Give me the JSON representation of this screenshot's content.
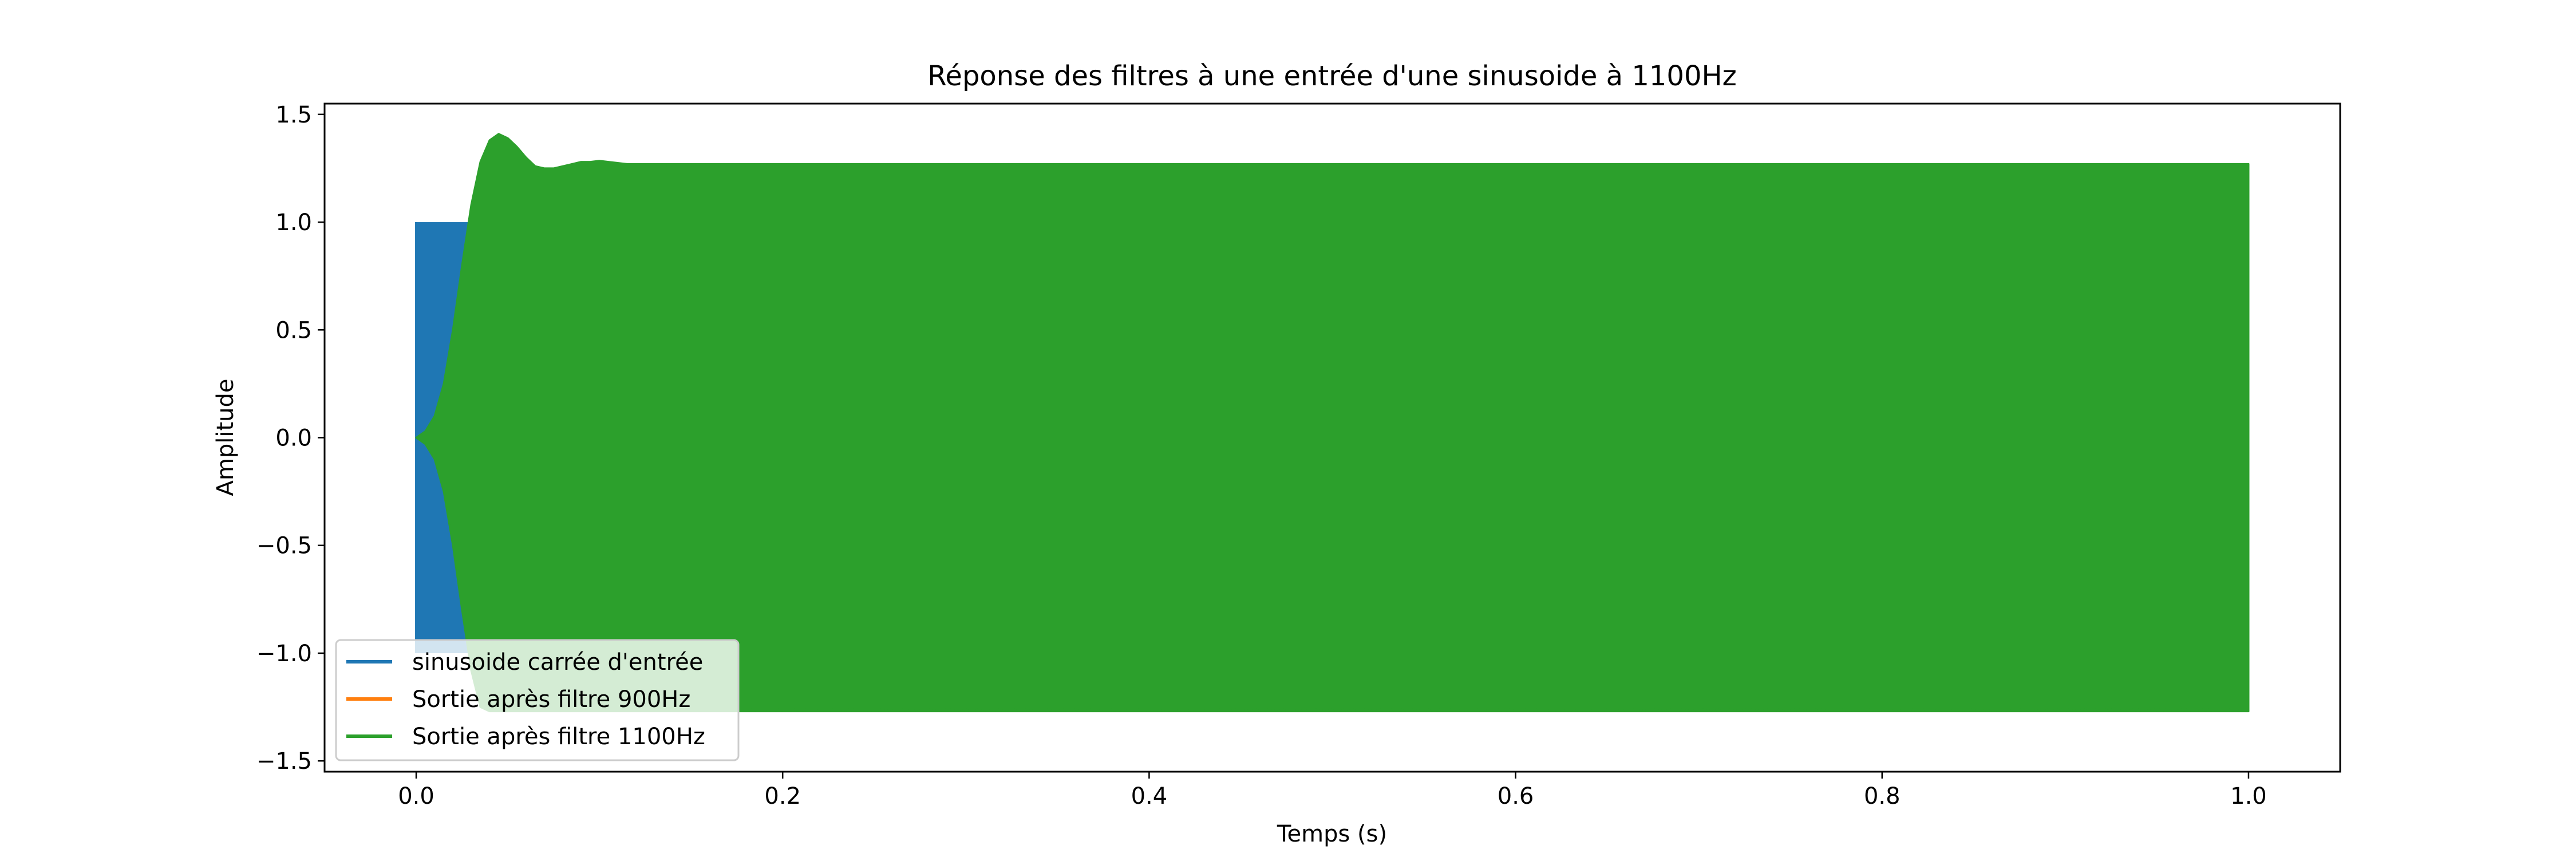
{
  "chart_data": {
    "type": "line",
    "title": "Réponse des filtres à une entrée d'une sinusoide à 1100Hz",
    "xlabel": "Temps (s)",
    "ylabel": "Amplitude",
    "xlim": [
      -0.05,
      1.05
    ],
    "ylim": [
      -1.55,
      1.55
    ],
    "xticks": [
      0.0,
      0.2,
      0.4,
      0.6,
      0.8,
      1.0
    ],
    "yticks": [
      -1.5,
      -1.0,
      -0.5,
      0.0,
      0.5,
      1.0,
      1.5
    ],
    "xtick_labels": [
      "0.0",
      "0.2",
      "0.4",
      "0.6",
      "0.8",
      "1.0"
    ],
    "ytick_labels": [
      "−1.5",
      "−1.0",
      "−0.5",
      "0.0",
      "0.5",
      "1.0",
      "1.5"
    ],
    "grid": false,
    "legend_position": "lower-left",
    "signal_frequency_hz": 1100,
    "series": [
      {
        "name": "sinusoide carrée d'entrée",
        "color": "#1f77b4",
        "kind": "square-wave",
        "t_start": 0.0,
        "t_end": 1.0,
        "amplitude": 1.0
      },
      {
        "name": "Sortie après filtre 900Hz",
        "color": "#ff7f0e",
        "kind": "filtered-output",
        "t_start": 0.0,
        "t_end": 1.0,
        "peak_amplitude": 0.0
      },
      {
        "name": "Sortie après filtre 1100Hz",
        "color": "#2ca02c",
        "kind": "oscillation-envelope",
        "t_start": 0.0,
        "t_end": 1.0,
        "envelope": {
          "t": [
            0.0,
            0.005,
            0.01,
            0.015,
            0.02,
            0.025,
            0.03,
            0.035,
            0.04,
            0.045,
            0.05,
            0.055,
            0.06,
            0.065,
            0.07,
            0.075,
            0.08,
            0.085,
            0.09,
            0.095,
            0.1,
            0.105,
            0.11,
            0.115,
            0.12,
            0.13,
            0.15,
            0.2,
            0.4,
            0.6,
            0.8,
            1.0
          ],
          "upper": [
            0.0,
            0.03,
            0.1,
            0.25,
            0.5,
            0.8,
            1.08,
            1.28,
            1.38,
            1.41,
            1.39,
            1.35,
            1.3,
            1.26,
            1.25,
            1.25,
            1.26,
            1.27,
            1.28,
            1.28,
            1.285,
            1.28,
            1.275,
            1.27,
            1.27,
            1.27,
            1.27,
            1.27,
            1.27,
            1.27,
            1.27,
            1.27
          ],
          "lower": [
            0.0,
            -0.03,
            -0.1,
            -0.25,
            -0.5,
            -0.8,
            -1.08,
            -1.25,
            -1.27,
            -1.27,
            -1.27,
            -1.27,
            -1.27,
            -1.27,
            -1.27,
            -1.27,
            -1.27,
            -1.27,
            -1.27,
            -1.27,
            -1.27,
            -1.27,
            -1.27,
            -1.27,
            -1.27,
            -1.27,
            -1.27,
            -1.27,
            -1.27,
            -1.27,
            -1.27,
            -1.27
          ]
        }
      }
    ]
  }
}
